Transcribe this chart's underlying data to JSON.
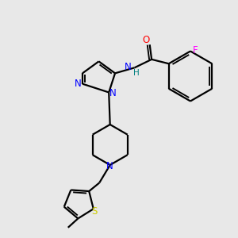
{
  "background_color": "#e8e8e8",
  "bond_color": "#000000",
  "N_color": "#0000ff",
  "O_color": "#ff0000",
  "S_color": "#cccc00",
  "F_color": "#ff00ff",
  "H_color": "#008080",
  "line_width": 1.6,
  "font_size": 8.5,
  "fig_w": 3.0,
  "fig_h": 3.0,
  "dpi": 100,
  "xlim": [
    0,
    10
  ],
  "ylim": [
    0,
    10
  ]
}
